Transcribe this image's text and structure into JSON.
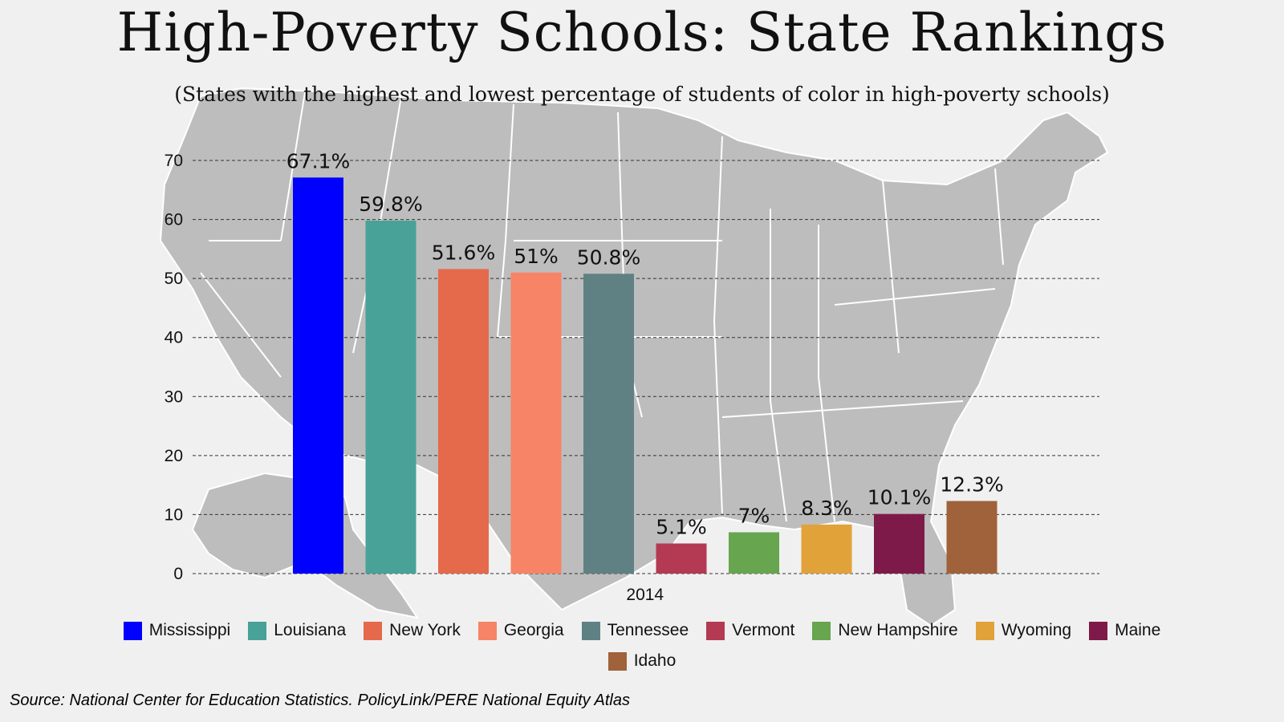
{
  "title": "High-Poverty Schools: State Rankings",
  "subtitle": "(States with the highest and lowest percentage of students of color in high-poverty schools)",
  "source": "Source: National Center for Education Statistics. PolicyLink/PERE National Equity Atlas",
  "background": "map-of-united-states",
  "chart_data": {
    "type": "bar",
    "categories": [
      "2014"
    ],
    "xlabel": "",
    "ylabel": "",
    "ylim": [
      0,
      70
    ],
    "yticks": [
      0,
      10,
      20,
      30,
      40,
      50,
      60,
      70
    ],
    "grid": true,
    "legend_position": "bottom",
    "series": [
      {
        "name": "Mississippi",
        "values": [
          67.1
        ],
        "label": "67.1%",
        "color": "#0000ff"
      },
      {
        "name": "Louisiana",
        "values": [
          59.8
        ],
        "label": "59.8%",
        "color": "#48a297"
      },
      {
        "name": "New York",
        "values": [
          51.6
        ],
        "label": "51.6%",
        "color": "#e5694b"
      },
      {
        "name": "Georgia",
        "values": [
          51
        ],
        "label": "51%",
        "color": "#f78466"
      },
      {
        "name": "Tennessee",
        "values": [
          50.8
        ],
        "label": "50.8%",
        "color": "#5f8184"
      },
      {
        "name": "Vermont",
        "values": [
          5.1
        ],
        "label": "5.1%",
        "color": "#b33a52"
      },
      {
        "name": "New Hampshire",
        "values": [
          7
        ],
        "label": "7%",
        "color": "#67a54f"
      },
      {
        "name": "Wyoming",
        "values": [
          8.3
        ],
        "label": "8.3%",
        "color": "#e1a23a"
      },
      {
        "name": "Maine",
        "values": [
          10.1
        ],
        "label": "10.1%",
        "color": "#7e1a49"
      },
      {
        "name": "Idaho",
        "values": [
          12.3
        ],
        "label": "12.3%",
        "color": "#a0623a"
      }
    ]
  }
}
